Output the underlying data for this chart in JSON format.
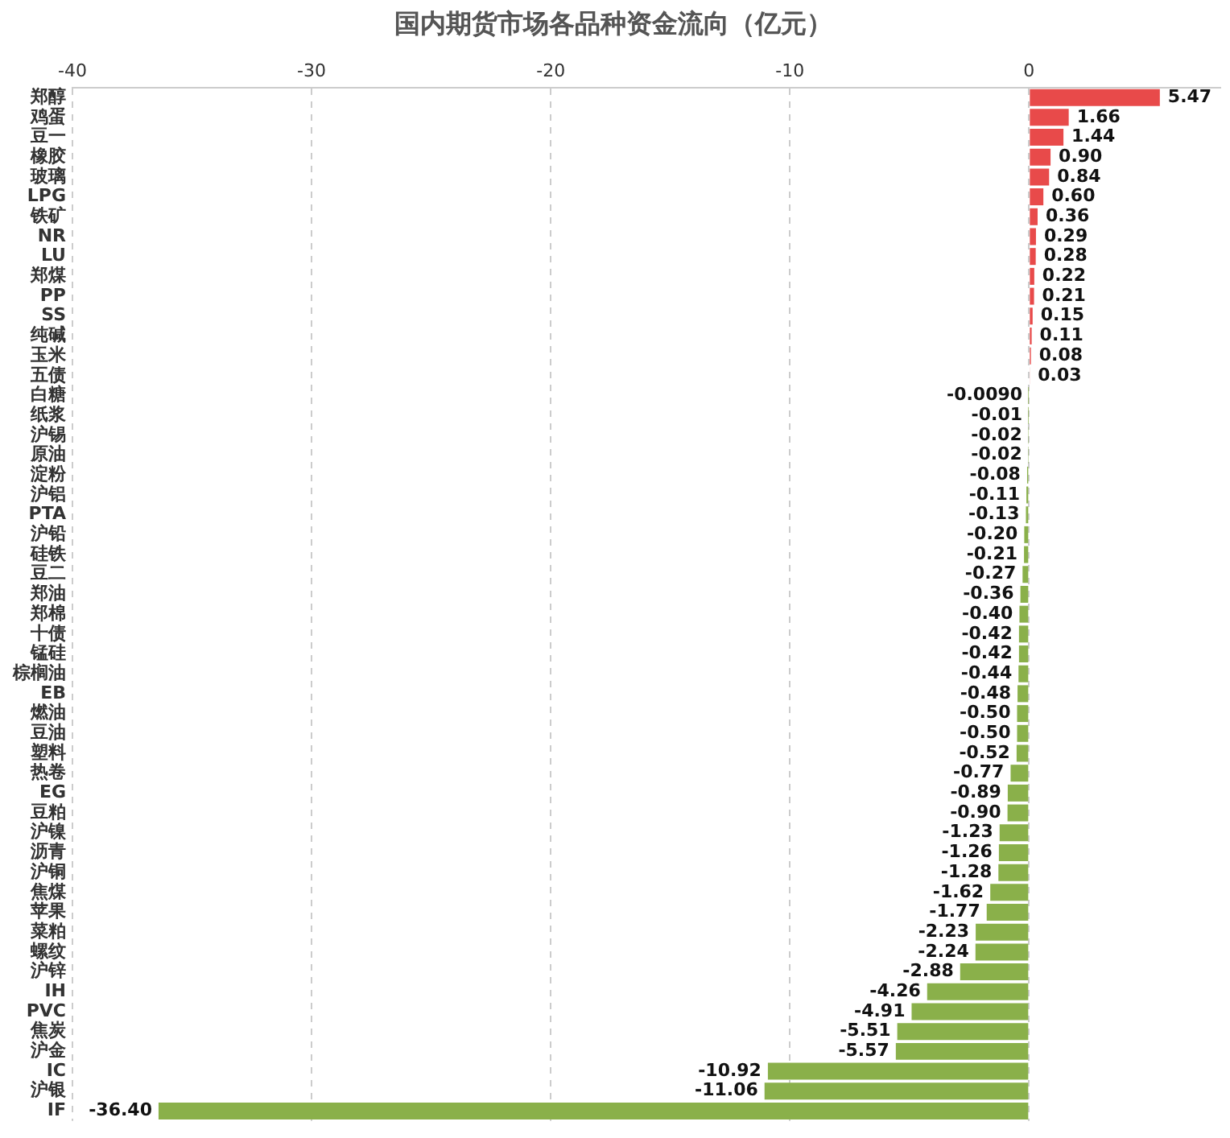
{
  "chart_data": {
    "type": "bar",
    "orientation": "horizontal",
    "title": "国内期货市场各品种资金流向（亿元）",
    "categories": [
      "郑醇",
      "鸡蛋",
      "豆一",
      "橡胶",
      "玻璃",
      "LPG",
      "铁矿",
      "NR",
      "LU",
      "郑煤",
      "PP",
      "SS",
      "纯碱",
      "玉米",
      "五债",
      "白糖",
      "纸浆",
      "沪锡",
      "原油",
      "淀粉",
      "沪铝",
      "PTA",
      "沪铅",
      "硅铁",
      "豆二",
      "郑油",
      "郑棉",
      "十债",
      "锰硅",
      "棕榈油",
      "EB",
      "燃油",
      "豆油",
      "塑料",
      "热卷",
      "EG",
      "豆粕",
      "沪镍",
      "沥青",
      "沪铜",
      "焦煤",
      "苹果",
      "菜粕",
      "螺纹",
      "沪锌",
      "IH",
      "PVC",
      "焦炭",
      "沪金",
      "IC",
      "沪银",
      "IF"
    ],
    "values": [
      5.47,
      1.66,
      1.44,
      0.9,
      0.84,
      0.6,
      0.36,
      0.29,
      0.28,
      0.22,
      0.21,
      0.15,
      0.11,
      0.08,
      0.03,
      -0.009,
      -0.01,
      -0.02,
      -0.02,
      -0.08,
      -0.11,
      -0.13,
      -0.2,
      -0.21,
      -0.27,
      -0.36,
      -0.4,
      -0.42,
      -0.42,
      -0.44,
      -0.48,
      -0.5,
      -0.5,
      -0.52,
      -0.77,
      -0.89,
      -0.9,
      -1.23,
      -1.26,
      -1.28,
      -1.62,
      -1.77,
      -2.23,
      -2.24,
      -2.88,
      -4.26,
      -4.91,
      -5.51,
      -5.57,
      -10.92,
      -11.06,
      -36.4
    ],
    "value_labels": [
      "5.47",
      "1.66",
      "1.44",
      "0.90",
      "0.84",
      "0.60",
      "0.36",
      "0.29",
      "0.28",
      "0.22",
      "0.21",
      "0.15",
      "0.11",
      "0.08",
      "0.03",
      "-0.0090",
      "-0.01",
      "-0.02",
      "-0.02",
      "-0.08",
      "-0.11",
      "-0.13",
      "-0.20",
      "-0.21",
      "-0.27",
      "-0.36",
      "-0.40",
      "-0.42",
      "-0.42",
      "-0.44",
      "-0.48",
      "-0.50",
      "-0.50",
      "-0.52",
      "-0.77",
      "-0.89",
      "-0.90",
      "-1.23",
      "-1.26",
      "-1.28",
      "-1.62",
      "-1.77",
      "-2.23",
      "-2.24",
      "-2.88",
      "-4.26",
      "-4.91",
      "-5.51",
      "-5.57",
      "-10.92",
      "-11.06",
      "-36.40"
    ],
    "colors": [
      "#e84a4a",
      "#e84a4a",
      "#e84a4a",
      "#e84a4a",
      "#e84a4a",
      "#e84a4a",
      "#e84a4a",
      "#e84a4a",
      "#e84a4a",
      "#e84a4a",
      "#e84a4a",
      "#e84a4a",
      "#e84a4a",
      "#e84a4a",
      "#e84a4a",
      "#8ab04a",
      "#8ab04a",
      "#8ab04a",
      "#8ab04a",
      "#8ab04a",
      "#8ab04a",
      "#8ab04a",
      "#8ab04a",
      "#8ab04a",
      "#8ab04a",
      "#8ab04a",
      "#8ab04a",
      "#8ab04a",
      "#8ab04a",
      "#8ab04a",
      "#8ab04a",
      "#8ab04a",
      "#8ab04a",
      "#8ab04a",
      "#8ab04a",
      "#8ab04a",
      "#8ab04a",
      "#8ab04a",
      "#8ab04a",
      "#8ab04a",
      "#8ab04a",
      "#8ab04a",
      "#8ab04a",
      "#8ab04a",
      "#8ab04a",
      "#8ab04a",
      "#8ab04a",
      "#8ab04a",
      "#8ab04a",
      "#8ab04a",
      "#8ab04a",
      "#8ab04a"
    ],
    "xlim": [
      -40,
      8
    ],
    "xticks": [
      -40,
      -30,
      -20,
      -10,
      0
    ],
    "grid": "x"
  }
}
